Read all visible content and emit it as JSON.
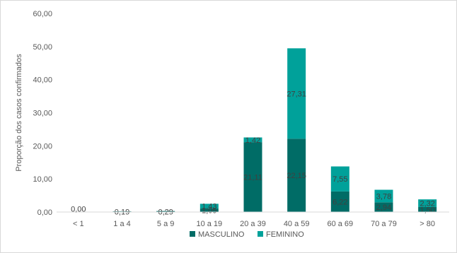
{
  "chart_data": {
    "type": "bar",
    "stacked": true,
    "ylabel": "Proporção dos casos confirmados",
    "xlabel": "",
    "ylim": [
      0,
      60
    ],
    "yticks": [
      "0,00",
      "10,00",
      "20,00",
      "30,00",
      "40,00",
      "50,00",
      "60,00"
    ],
    "categories": [
      "< 1",
      "1 a 4",
      "5 a 9",
      "10 a 19",
      "20 a 39",
      "40 a 59",
      "60 a 69",
      "70 a 79",
      "> 80"
    ],
    "grid": false,
    "legend_position": "bottom",
    "series": [
      {
        "name": "MASCULINO",
        "color": "#006c66",
        "values": [
          0,
          0.19,
          0.29,
          1.05,
          21.11,
          22.15,
          6.22,
          2.94,
          1.5
        ],
        "labels": [
          "0,00",
          "0,19",
          "0,29",
          "1,05",
          "21,11",
          "22,15",
          "6,22",
          "2,94",
          "1,50"
        ]
      },
      {
        "name": "FEMININO",
        "color": "#00a19a",
        "values": [
          0,
          0,
          0,
          1.43,
          1.42,
          27.31,
          7.55,
          3.78,
          2.32
        ],
        "labels": [
          "0,00",
          "0,00",
          "0,00",
          "1,43",
          "1,42",
          "27,31",
          "7,55",
          "3,78",
          "2,32"
        ]
      }
    ]
  }
}
